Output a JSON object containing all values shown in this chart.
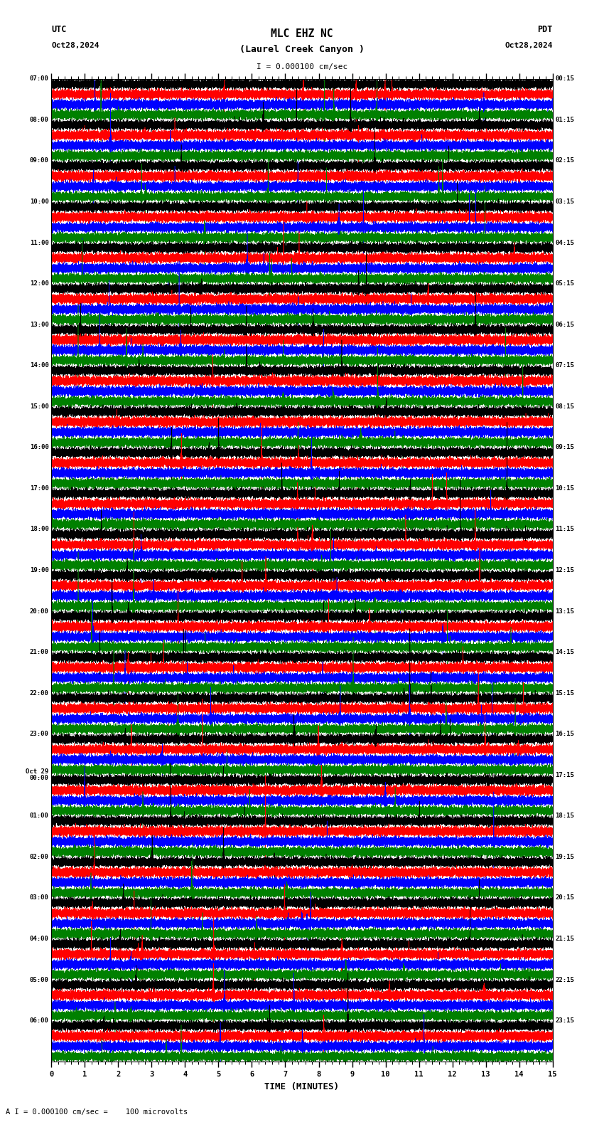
{
  "title_line1": "MLC EHZ NC",
  "title_line2": "(Laurel Creek Canyon )",
  "scale_text": "I = 0.000100 cm/sec",
  "utc_label": "UTC",
  "pdt_label": "PDT",
  "date_left": "Oct28,2024",
  "date_right": "Oct28,2024",
  "xlabel": "TIME (MINUTES)",
  "bottom_note": "A I = 0.000100 cm/sec =    100 microvolts",
  "trace_colors": [
    "black",
    "red",
    "blue",
    "green"
  ],
  "background_color": "white",
  "grid_color": "#888888",
  "fig_width": 8.5,
  "fig_height": 15.84,
  "dpi": 100,
  "n_groups": 24,
  "minutes_per_row": 15,
  "left_labels": [
    "07:00",
    "08:00",
    "09:00",
    "10:00",
    "11:00",
    "12:00",
    "13:00",
    "14:00",
    "15:00",
    "16:00",
    "17:00",
    "18:00",
    "19:00",
    "20:00",
    "21:00",
    "22:00",
    "23:00",
    "Oct 29\n00:00",
    "01:00",
    "02:00",
    "03:00",
    "04:00",
    "05:00",
    "06:00"
  ],
  "right_labels": [
    "00:15",
    "01:15",
    "02:15",
    "03:15",
    "04:15",
    "05:15",
    "06:15",
    "07:15",
    "08:15",
    "09:15",
    "10:15",
    "11:15",
    "12:15",
    "13:15",
    "14:15",
    "15:15",
    "16:15",
    "17:15",
    "18:15",
    "19:15",
    "20:15",
    "21:15",
    "22:15",
    "23:15"
  ],
  "amp_scales": [
    2.5,
    2.2,
    2.0,
    1.8,
    1.5,
    1.3,
    1.5,
    1.8,
    2.5,
    1.2,
    1.0,
    0.9,
    1.3,
    1.5,
    1.8,
    1.5,
    1.0,
    0.9,
    1.2,
    1.3,
    1.5,
    1.2,
    0.9,
    0.8
  ]
}
